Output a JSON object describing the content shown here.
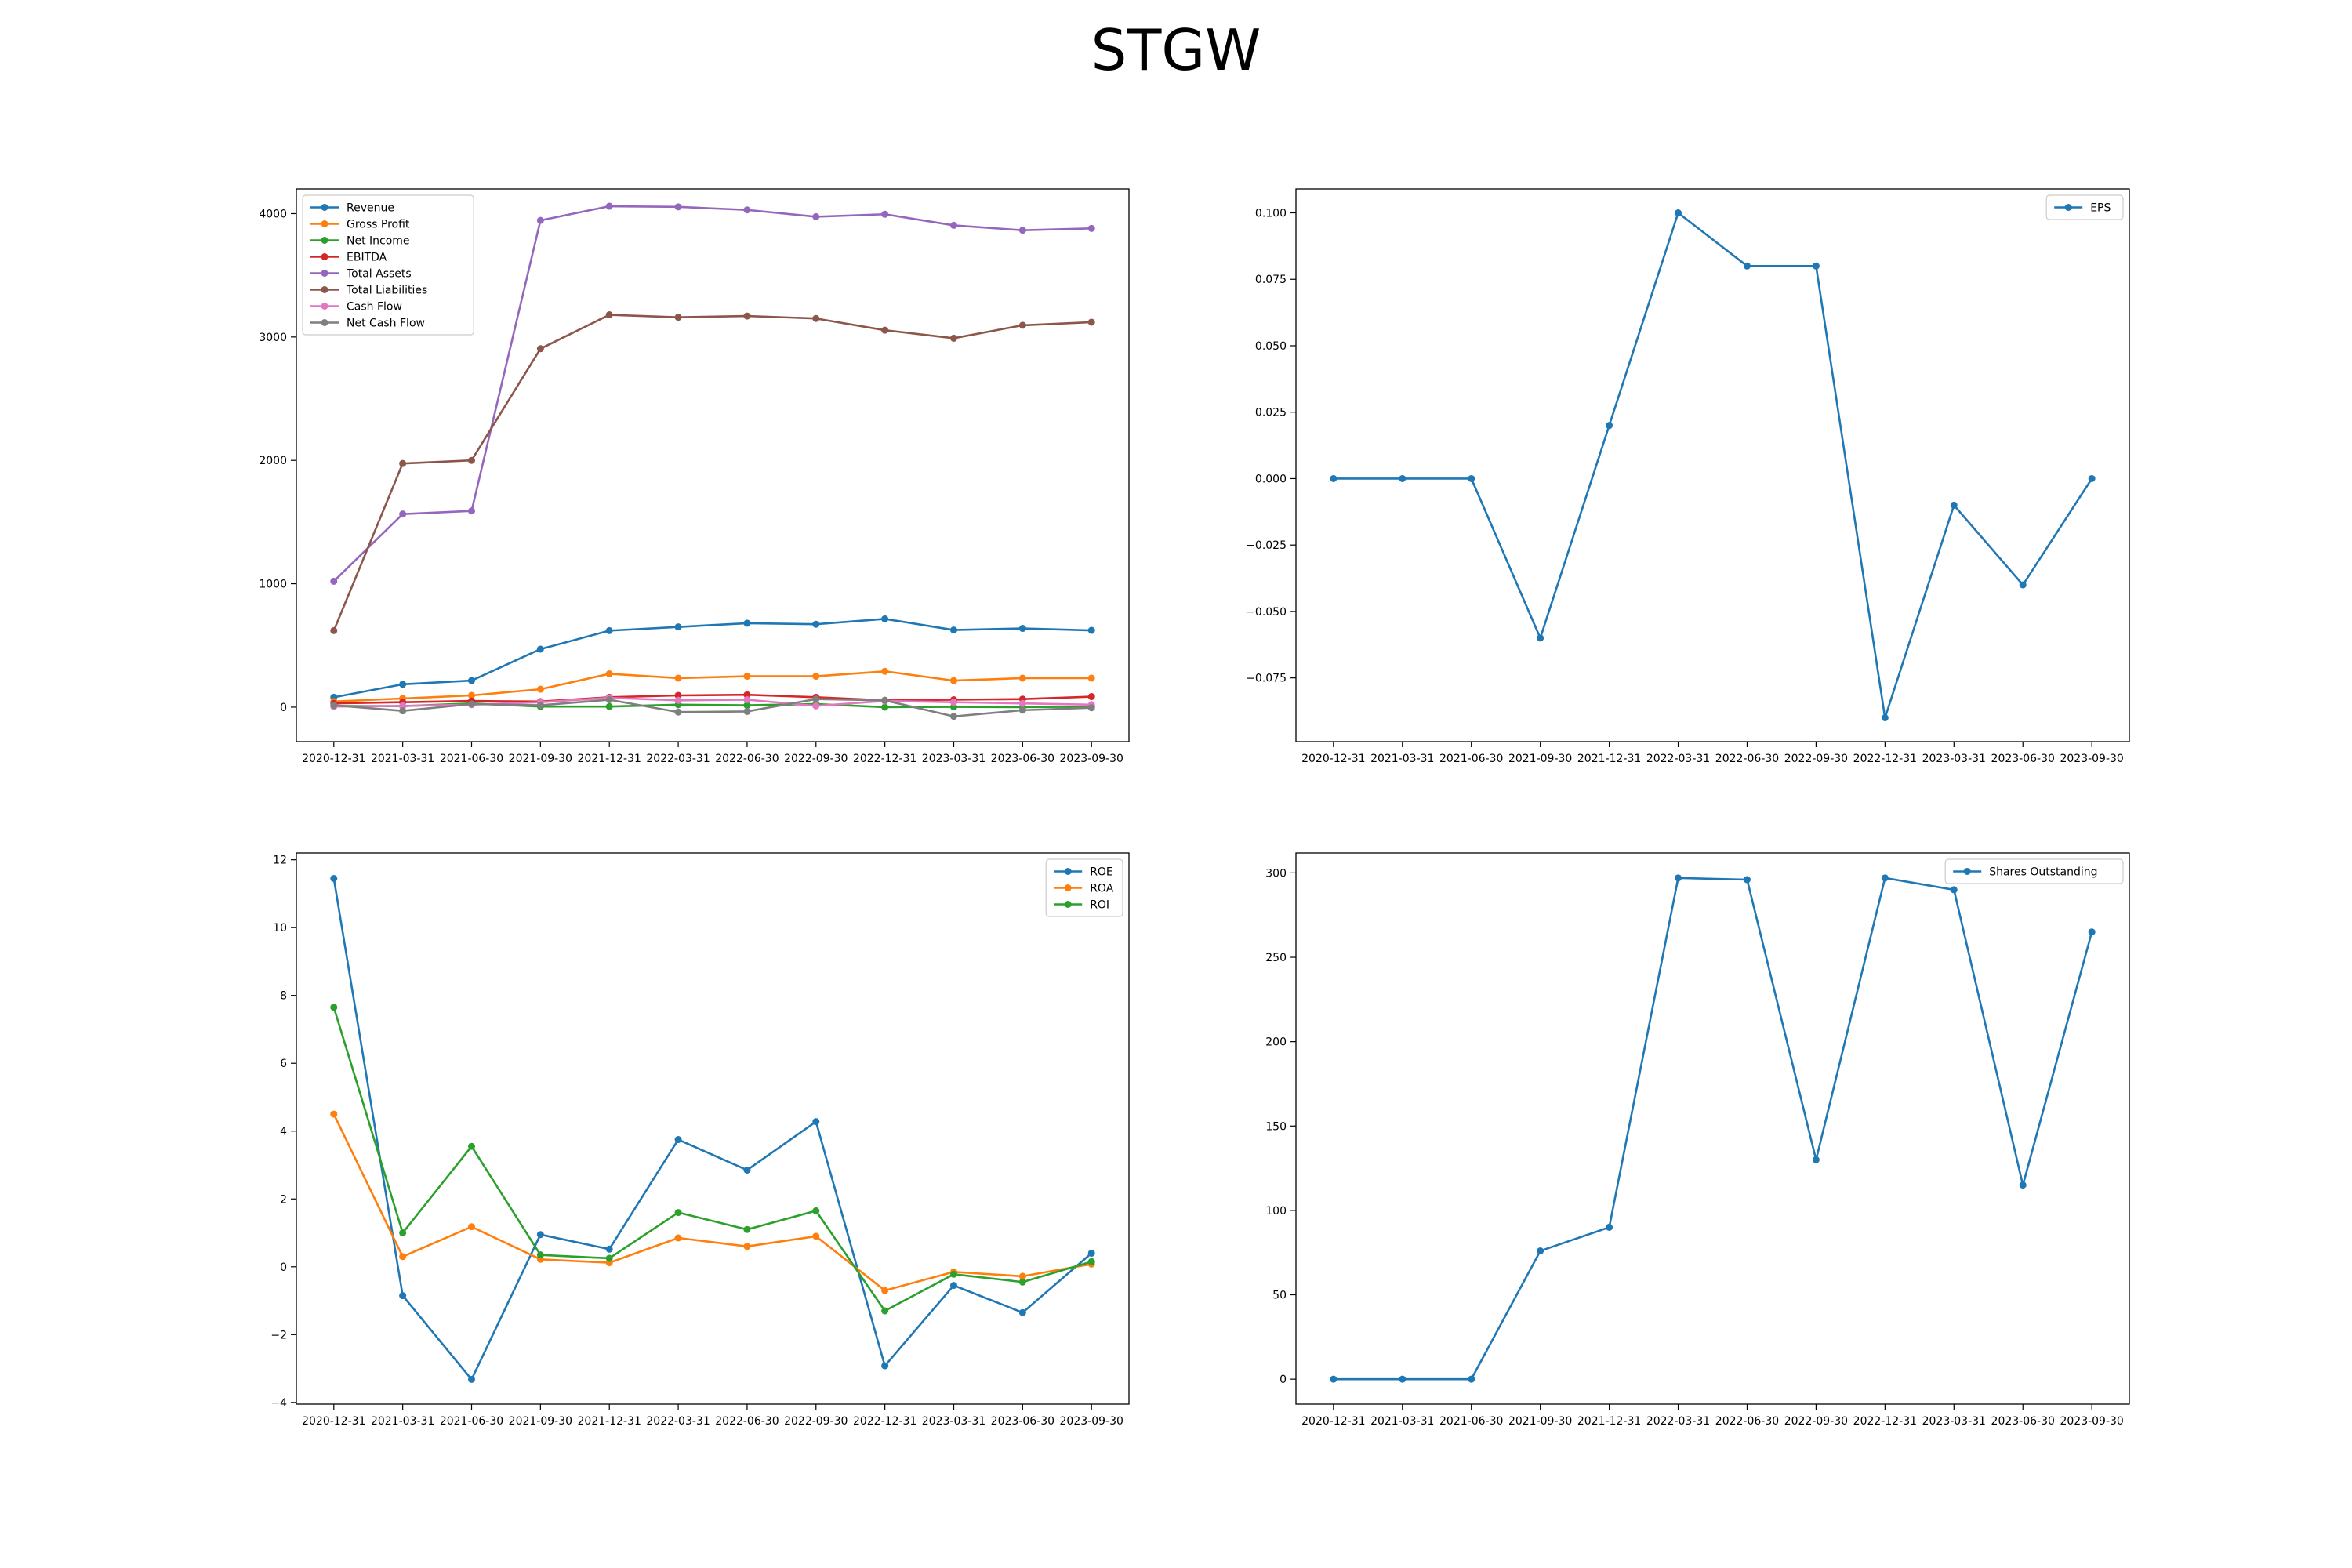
{
  "title": "STGW",
  "chart_data": [
    {
      "type": "line",
      "position": "top-left",
      "categories": [
        "2020-12-31",
        "2021-03-31",
        "2021-06-30",
        "2021-09-30",
        "2021-12-31",
        "2022-03-31",
        "2022-06-30",
        "2022-09-30",
        "2022-12-31",
        "2023-03-31",
        "2023-06-30",
        "2023-09-30"
      ],
      "ylim": [
        -280,
        4200
      ],
      "yticks": [
        0,
        1000,
        2000,
        3000,
        4000
      ],
      "legend": "top-left",
      "series": [
        {
          "name": "Revenue",
          "color": "#1f77b4",
          "values": [
            80,
            185,
            215,
            470,
            620,
            650,
            680,
            672,
            715,
            625,
            638,
            622
          ]
        },
        {
          "name": "Gross Profit",
          "color": "#ff7f0e",
          "values": [
            45,
            70,
            95,
            145,
            270,
            235,
            250,
            250,
            290,
            215,
            235,
            235
          ]
        },
        {
          "name": "Net Income",
          "color": "#2ca02c",
          "values": [
            10,
            8,
            30,
            5,
            5,
            20,
            15,
            25,
            0,
            2,
            0,
            5
          ]
        },
        {
          "name": "EBITDA",
          "color": "#d62728",
          "values": [
            30,
            40,
            50,
            45,
            80,
            95,
            100,
            80,
            55,
            60,
            65,
            85
          ]
        },
        {
          "name": "Total Assets",
          "color": "#9467bd",
          "values": [
            1020,
            1565,
            1590,
            3945,
            4060,
            4055,
            4030,
            3975,
            3995,
            3905,
            3865,
            3880
          ]
        },
        {
          "name": "Total Liabilities",
          "color": "#8c564b",
          "values": [
            620,
            1975,
            2000,
            2905,
            3180,
            3160,
            3170,
            3150,
            3055,
            2990,
            3095,
            3120
          ]
        },
        {
          "name": "Cash Flow",
          "color": "#e377c2",
          "values": [
            5,
            10,
            20,
            40,
            75,
            55,
            60,
            10,
            50,
            40,
            30,
            20
          ]
        },
        {
          "name": "Net Cash Flow",
          "color": "#7f7f7f",
          "values": [
            15,
            -30,
            25,
            15,
            60,
            -40,
            -35,
            65,
            55,
            -75,
            -25,
            -5
          ]
        }
      ]
    },
    {
      "type": "line",
      "position": "top-right",
      "categories": [
        "2020-12-31",
        "2021-03-31",
        "2021-06-30",
        "2021-09-30",
        "2021-12-31",
        "2022-03-31",
        "2022-06-30",
        "2022-09-30",
        "2022-12-31",
        "2023-03-31",
        "2023-06-30",
        "2023-09-30"
      ],
      "ylim": [
        -0.099,
        0.109
      ],
      "yticks": [
        -0.075,
        -0.05,
        -0.025,
        0.0,
        0.025,
        0.05,
        0.075,
        0.1
      ],
      "ytick_labels": [
        "−0.075",
        "−0.050",
        "−0.025",
        "0.000",
        "0.025",
        "0.050",
        "0.075",
        "0.100"
      ],
      "legend": "top-right",
      "series": [
        {
          "name": "EPS",
          "color": "#1f77b4",
          "values": [
            0.0,
            0.0,
            0.0,
            -0.06,
            0.02,
            0.1,
            0.08,
            0.08,
            -0.09,
            -0.01,
            -0.04,
            0.0
          ]
        }
      ]
    },
    {
      "type": "line",
      "position": "bottom-left",
      "categories": [
        "2020-12-31",
        "2021-03-31",
        "2021-06-30",
        "2021-09-30",
        "2021-12-31",
        "2022-03-31",
        "2022-06-30",
        "2022-09-30",
        "2022-12-31",
        "2023-03-31",
        "2023-06-30",
        "2023-09-30"
      ],
      "ylim": [
        -4.05,
        12.2
      ],
      "yticks": [
        -4,
        -2,
        0,
        2,
        4,
        6,
        8,
        10,
        12
      ],
      "ytick_labels": [
        "−4",
        "−2",
        "0",
        "2",
        "4",
        "6",
        "8",
        "10",
        "12"
      ],
      "legend": "top-right",
      "series": [
        {
          "name": "ROE",
          "color": "#1f77b4",
          "values": [
            11.45,
            -0.85,
            -3.32,
            0.95,
            0.52,
            3.75,
            2.85,
            4.28,
            -2.92,
            -0.55,
            -1.35,
            0.4
          ]
        },
        {
          "name": "ROA",
          "color": "#ff7f0e",
          "values": [
            4.5,
            0.3,
            1.18,
            0.22,
            0.12,
            0.85,
            0.6,
            0.9,
            -0.7,
            -0.15,
            -0.28,
            0.08
          ]
        },
        {
          "name": "ROI",
          "color": "#2ca02c",
          "values": [
            7.65,
            1.0,
            3.55,
            0.35,
            0.25,
            1.6,
            1.1,
            1.65,
            -1.3,
            -0.22,
            -0.45,
            0.15
          ]
        }
      ]
    },
    {
      "type": "line",
      "position": "bottom-right",
      "categories": [
        "2020-12-31",
        "2021-03-31",
        "2021-06-30",
        "2021-09-30",
        "2021-12-31",
        "2022-03-31",
        "2022-06-30",
        "2022-09-30",
        "2022-12-31",
        "2023-03-31",
        "2023-06-30",
        "2023-09-30"
      ],
      "ylim": [
        -14.8,
        311.8
      ],
      "yticks": [
        0,
        50,
        100,
        150,
        200,
        250,
        300
      ],
      "legend": "top-right",
      "series": [
        {
          "name": "Shares Outstanding",
          "color": "#1f77b4",
          "values": [
            0,
            0,
            0,
            76,
            90,
            297,
            296,
            130,
            297,
            290,
            115,
            265
          ]
        }
      ]
    }
  ]
}
